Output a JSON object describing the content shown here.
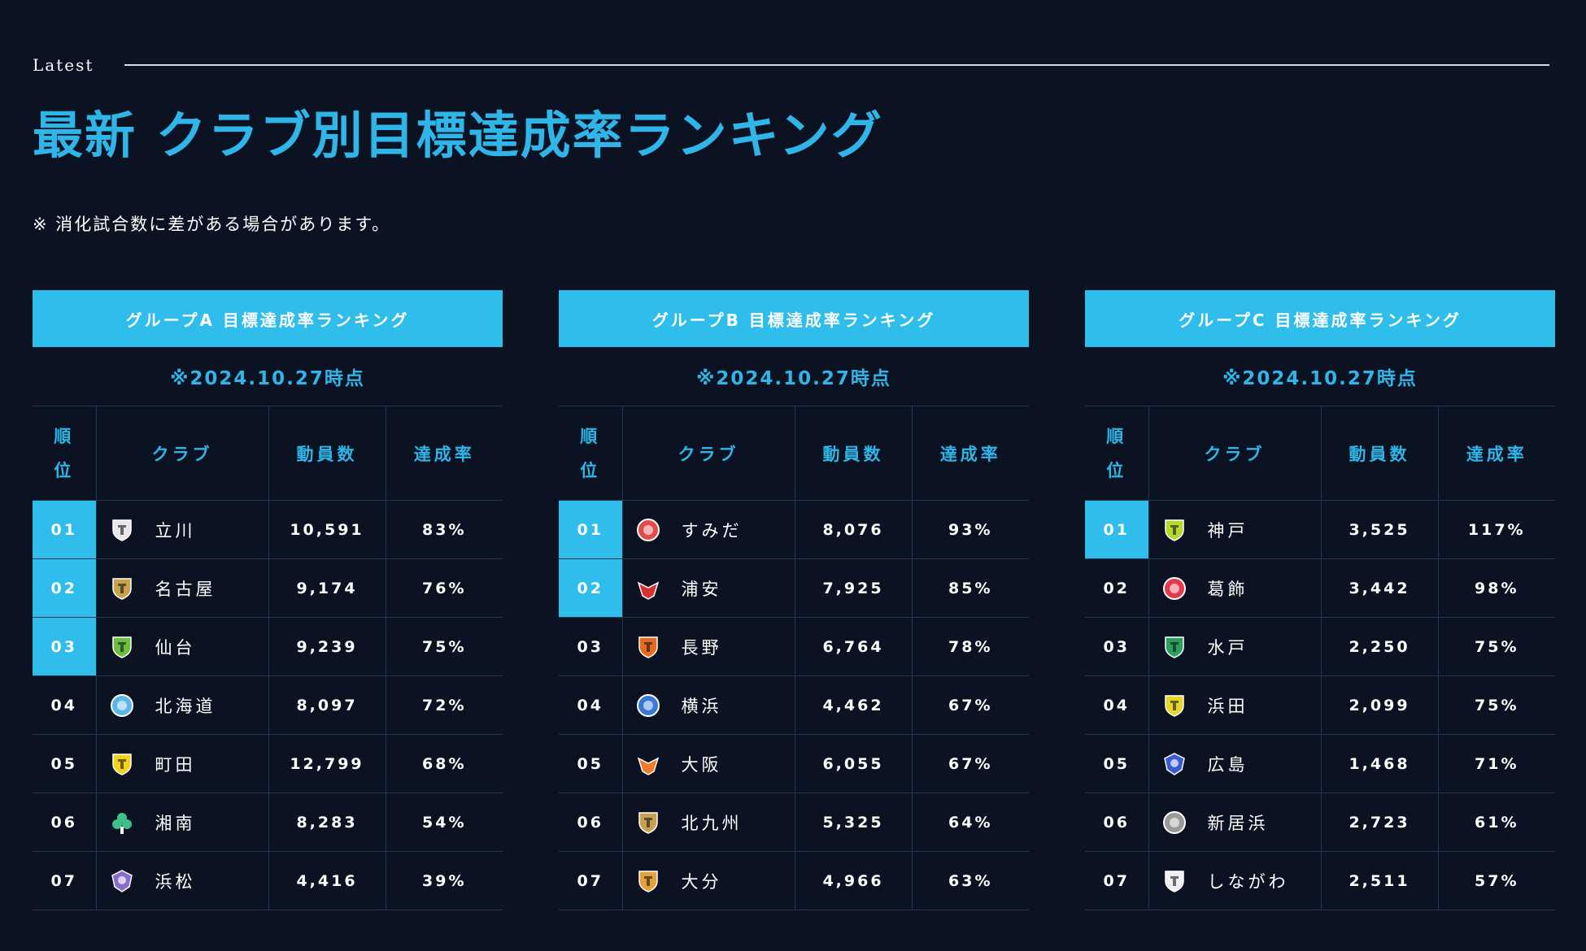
{
  "eyebrow": "Latest",
  "title": "最新 クラブ別目標達成率ランキング",
  "note": "※ 消化試合数に差がある場合があります。",
  "columns": {
    "rank": "順位",
    "club": "クラブ",
    "attendance": "動員数",
    "rate": "達成率"
  },
  "groups": [
    {
      "header": "グループA 目標達成率ランキング",
      "date": "※2024.10.27時点",
      "rows": [
        {
          "rank": "01",
          "club": "立川",
          "attendance": "10,591",
          "rate": "83%",
          "highlight": true,
          "emblem": "shield-white",
          "color": "#e8e8e8"
        },
        {
          "rank": "02",
          "club": "名古屋",
          "attendance": "9,174",
          "rate": "76%",
          "highlight": true,
          "emblem": "shield-dark",
          "color": "#c9a24a"
        },
        {
          "rank": "03",
          "club": "仙台",
          "attendance": "9,239",
          "rate": "75%",
          "highlight": true,
          "emblem": "shield-green",
          "color": "#6cbf3a"
        },
        {
          "rank": "04",
          "club": "北海道",
          "attendance": "8,097",
          "rate": "72%",
          "highlight": false,
          "emblem": "circle-blue",
          "color": "#5bb7e6"
        },
        {
          "rank": "05",
          "club": "町田",
          "attendance": "12,799",
          "rate": "68%",
          "highlight": false,
          "emblem": "shield-yellow",
          "color": "#f2d21a"
        },
        {
          "rank": "06",
          "club": "湘南",
          "attendance": "8,283",
          "rate": "54%",
          "highlight": false,
          "emblem": "flower-green",
          "color": "#3fbf8a"
        },
        {
          "rank": "07",
          "club": "浜松",
          "attendance": "4,416",
          "rate": "39%",
          "highlight": false,
          "emblem": "crest-purple",
          "color": "#8a6cc8"
        }
      ]
    },
    {
      "header": "グループB 目標達成率ランキング",
      "date": "※2024.10.27時点",
      "rows": [
        {
          "rank": "01",
          "club": "すみだ",
          "attendance": "8,076",
          "rate": "93%",
          "highlight": true,
          "emblem": "circle-red",
          "color": "#e34a4a"
        },
        {
          "rank": "02",
          "club": "浦安",
          "attendance": "7,925",
          "rate": "85%",
          "highlight": true,
          "emblem": "bird-red",
          "color": "#d93030"
        },
        {
          "rank": "03",
          "club": "長野",
          "attendance": "6,764",
          "rate": "78%",
          "highlight": false,
          "emblem": "shield-orange",
          "color": "#e86a1f"
        },
        {
          "rank": "04",
          "club": "横浜",
          "attendance": "4,462",
          "rate": "67%",
          "highlight": false,
          "emblem": "circle-navy",
          "color": "#3a78d6"
        },
        {
          "rank": "05",
          "club": "大阪",
          "attendance": "6,055",
          "rate": "67%",
          "highlight": false,
          "emblem": "wing-orange",
          "color": "#f07a2a"
        },
        {
          "rank": "06",
          "club": "北九州",
          "attendance": "5,325",
          "rate": "64%",
          "highlight": false,
          "emblem": "shield-gold",
          "color": "#c7a050"
        },
        {
          "rank": "07",
          "club": "大分",
          "attendance": "4,966",
          "rate": "63%",
          "highlight": false,
          "emblem": "shield-amber",
          "color": "#e6a23a"
        }
      ]
    },
    {
      "header": "グループC 目標達成率ランキング",
      "date": "※2024.10.27時点",
      "rows": [
        {
          "rank": "01",
          "club": "神戸",
          "attendance": "3,525",
          "rate": "117%",
          "highlight": true,
          "emblem": "shield-lime",
          "color": "#b6d92b"
        },
        {
          "rank": "02",
          "club": "葛飾",
          "attendance": "3,442",
          "rate": "98%",
          "highlight": false,
          "emblem": "circle-redwhite",
          "color": "#e33a4a"
        },
        {
          "rank": "03",
          "club": "水戸",
          "attendance": "2,250",
          "rate": "75%",
          "highlight": false,
          "emblem": "shield-clover",
          "color": "#2aa05a"
        },
        {
          "rank": "04",
          "club": "浜田",
          "attendance": "2,099",
          "rate": "75%",
          "highlight": false,
          "emblem": "shield-yellowgreen",
          "color": "#e6d62a"
        },
        {
          "rank": "05",
          "club": "広島",
          "attendance": "1,468",
          "rate": "71%",
          "highlight": false,
          "emblem": "crest-bluered",
          "color": "#3a5ad6"
        },
        {
          "rank": "06",
          "club": "新居浜",
          "attendance": "2,723",
          "rate": "61%",
          "highlight": false,
          "emblem": "circle-grey",
          "color": "#9a9a9a"
        },
        {
          "rank": "07",
          "club": "しながわ",
          "attendance": "2,511",
          "rate": "57%",
          "highlight": false,
          "emblem": "shield-mono",
          "color": "#f0f0f0"
        }
      ]
    }
  ]
}
